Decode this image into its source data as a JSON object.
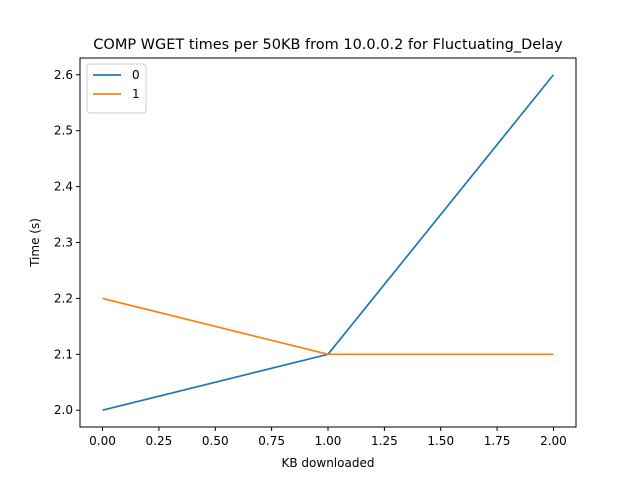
{
  "chart_data": {
    "type": "line",
    "title": "COMP WGET times per 50KB from 10.0.0.2 for Fluctuating_Delay",
    "xlabel": "KB downloaded",
    "ylabel": "Time (s)",
    "xlim": [
      -0.1,
      2.1
    ],
    "ylim": [
      1.97,
      2.63
    ],
    "xticks": [
      0.0,
      0.25,
      0.5,
      0.75,
      1.0,
      1.25,
      1.5,
      1.75,
      2.0
    ],
    "xtick_labels": [
      "0.00",
      "0.25",
      "0.50",
      "0.75",
      "1.00",
      "1.25",
      "1.50",
      "1.75",
      "2.00"
    ],
    "yticks": [
      2.0,
      2.1,
      2.2,
      2.3,
      2.4,
      2.5,
      2.6
    ],
    "ytick_labels": [
      "2.0",
      "2.1",
      "2.2",
      "2.3",
      "2.4",
      "2.5",
      "2.6"
    ],
    "grid": false,
    "legend_position": "top-left",
    "series": [
      {
        "name": "0",
        "color": "#1f77b4",
        "x": [
          0,
          1,
          2
        ],
        "y": [
          2.0,
          2.1,
          2.6
        ]
      },
      {
        "name": "1",
        "color": "#ff7f0e",
        "x": [
          0,
          1,
          2
        ],
        "y": [
          2.2,
          2.1,
          2.1
        ]
      }
    ]
  }
}
